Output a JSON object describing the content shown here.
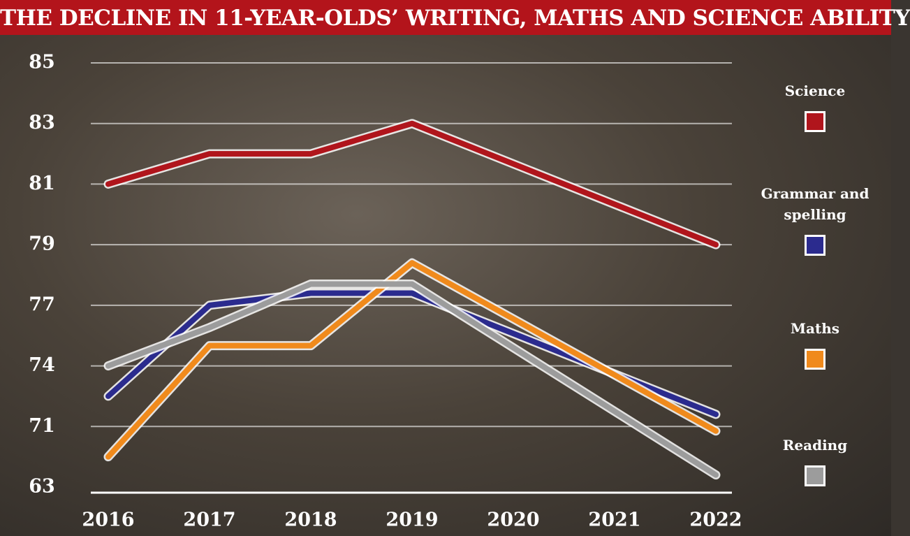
{
  "chart_data": {
    "type": "line",
    "title": "THE DECLINE IN 11-YEAR-OLDS’ WRITING, MATHS AND SCIENCE ABILITY",
    "x": [
      2016,
      2017,
      2018,
      2019,
      2022
    ],
    "xlim": [
      2016,
      2022
    ],
    "xticks": [
      2016,
      2017,
      2018,
      2019,
      2020,
      2021,
      2022
    ],
    "ylim": [
      63,
      85
    ],
    "yticks": [
      63,
      71,
      74,
      77,
      79,
      81,
      83,
      85
    ],
    "grid": true,
    "legend": "right",
    "series": [
      {
        "name": "Science",
        "color": "#b0151c",
        "values": [
          81,
          82,
          82,
          83,
          79
        ]
      },
      {
        "name": "Grammar and spelling",
        "color": "#2b2b8e",
        "values": [
          72.5,
          77,
          77.4,
          77.4,
          71.6
        ]
      },
      {
        "name": "Maths",
        "color": "#f08a1c",
        "values": [
          67,
          75,
          75,
          78.4,
          70.4
        ]
      },
      {
        "name": "Reading",
        "color": "#9c9c9c",
        "values": [
          74,
          75.9,
          77.7,
          77.7,
          64.6
        ]
      }
    ]
  }
}
